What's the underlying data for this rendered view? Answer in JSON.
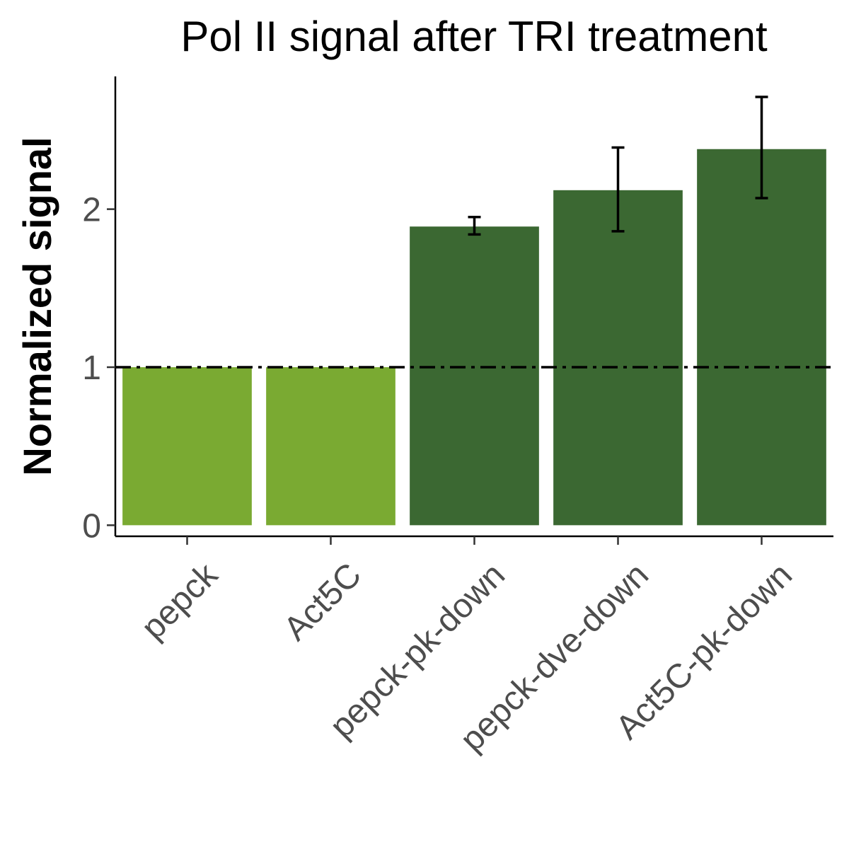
{
  "chart_data": {
    "type": "bar",
    "title": "Pol II signal after TRI treatment",
    "xlabel": "",
    "ylabel": "Normalized signal",
    "categories": [
      "pepck",
      "Act5C",
      "pepck-pk-down",
      "pepck-dve-down",
      "Act5C-pk-down"
    ],
    "values": [
      1.0,
      1.0,
      1.89,
      2.12,
      2.38
    ],
    "error_low": [
      null,
      null,
      1.84,
      1.86,
      2.07
    ],
    "error_high": [
      null,
      null,
      1.95,
      2.39,
      2.71
    ],
    "bar_colors": [
      "#7aaa32",
      "#7aaa32",
      "#3b6832",
      "#3b6832",
      "#3b6832"
    ],
    "yticks": [
      0,
      1,
      2
    ],
    "ytick_labels": [
      "0",
      "1",
      "2"
    ],
    "ylim": [
      -0.07,
      2.84
    ],
    "reference_line": {
      "y": 1,
      "style": "dash-dot",
      "color": "#000000"
    },
    "grid": false,
    "legend": "none"
  }
}
